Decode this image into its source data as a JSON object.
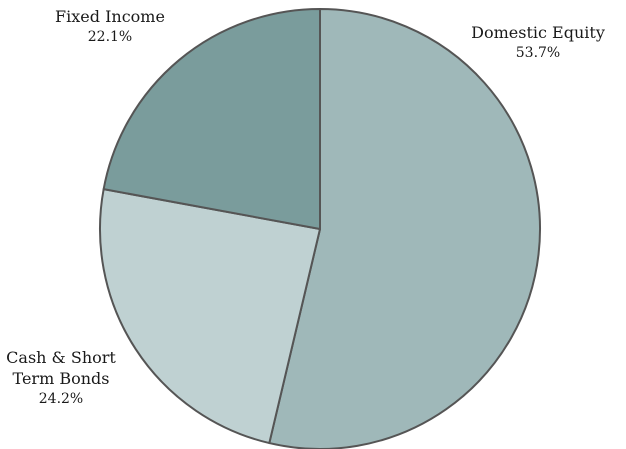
{
  "chart_data": {
    "type": "pie",
    "slices": [
      {
        "label": "Domestic Equity",
        "label_lines": [
          "Domestic Equity"
        ],
        "value": 53.7,
        "display": "53.7%",
        "color": "#9fb8b9"
      },
      {
        "label": "Cash & Short Term Bonds",
        "label_lines": [
          "Cash & Short",
          "Term Bonds"
        ],
        "value": 24.2,
        "display": "24.2%",
        "color": "#bfd1d2"
      },
      {
        "label": "Fixed Income",
        "label_lines": [
          "Fixed Income"
        ],
        "value": 22.1,
        "display": "22.1%",
        "color": "#7a9c9c"
      }
    ],
    "start_angle": "12 o'clock",
    "direction": "clockwise",
    "edge_color": "#555555",
    "legend": "none"
  }
}
